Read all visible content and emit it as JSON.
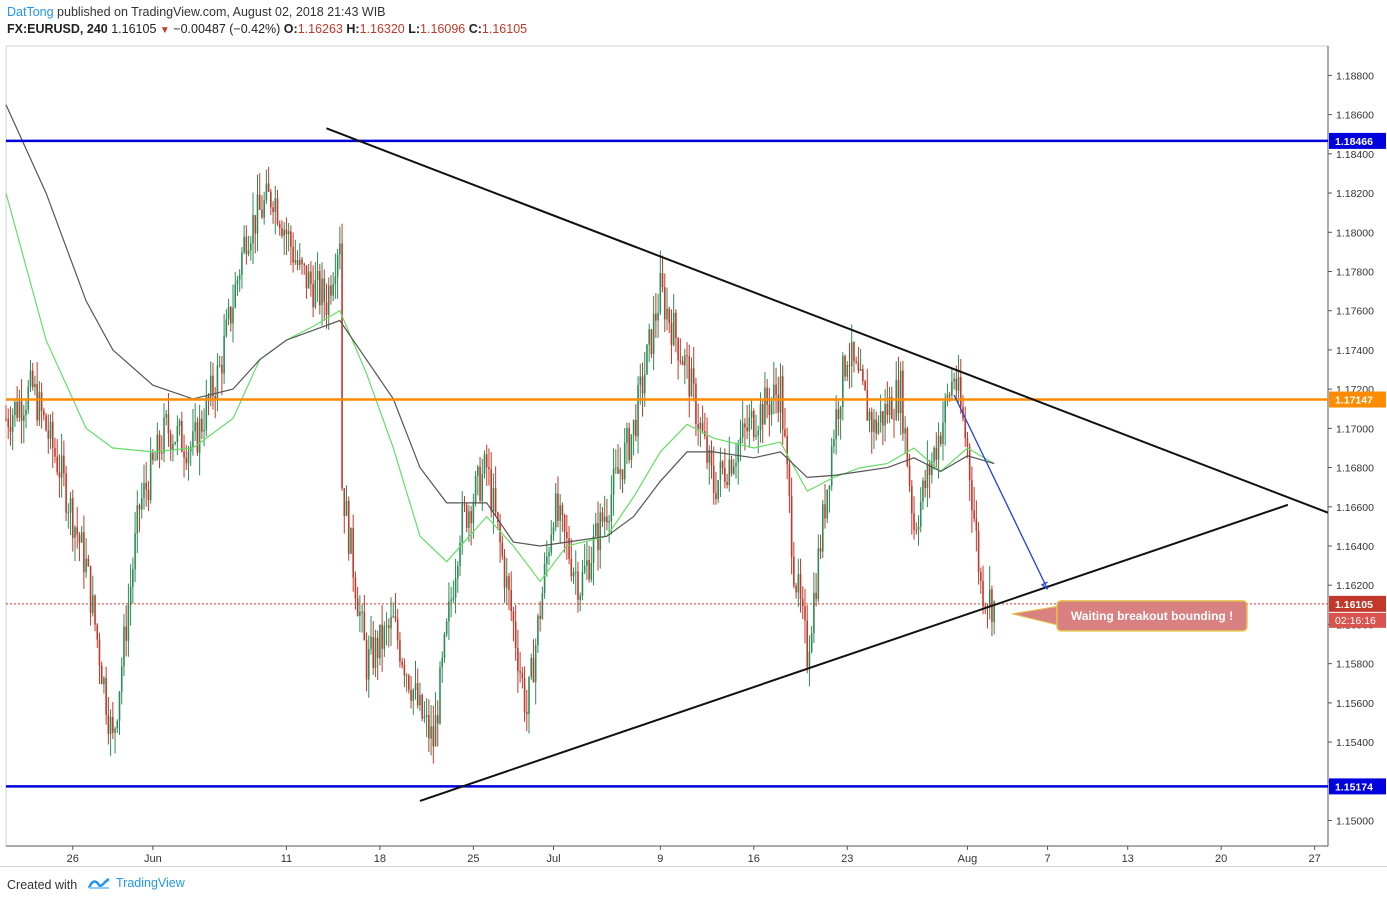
{
  "header": {
    "author": "DatTong",
    "published_text": "published on TradingView.com, August 02, 2018 21:43 WIB",
    "symbol": "FX:EURUSD, 240",
    "last": "1.16105",
    "change": "−0.00487 (−0.42%)",
    "open_label": "O:",
    "open": "1.16263",
    "high_label": "H:",
    "high": "1.16320",
    "low_label": "L:",
    "low": "1.16096",
    "close_label": "C:",
    "close": "1.16105"
  },
  "footer": {
    "created_with": "Created with",
    "brand": "TradingView"
  },
  "colors": {
    "up_candle": "#2e8b57",
    "down_candle": "#c0392b",
    "support_resistance": "#0000dd",
    "mid_level": "#ff8c00",
    "trendline": "#111111",
    "ma_fast": "#66dd66",
    "ma_slow": "#555555",
    "projection_arrow": "#1e3fd8",
    "price_line": "#c0392b",
    "callout_bg": "#d98080",
    "callout_border": "#e8c44a"
  },
  "chart_data": {
    "type": "candlestick",
    "symbol": "FX:EURUSD",
    "interval": "240",
    "y_axis": {
      "range": [
        1.1487,
        1.1895
      ],
      "tick_labels": [
        "1.18800",
        "1.18600",
        "1.18400",
        "1.18200",
        "1.18000",
        "1.17800",
        "1.17600",
        "1.17400",
        "1.17200",
        "1.17000",
        "1.16800",
        "1.16600",
        "1.16400",
        "1.16200",
        "1.16000",
        "1.15800",
        "1.15600",
        "1.15400",
        "1.15200",
        "1.15000"
      ]
    },
    "x_axis": {
      "tick_labels": [
        "26",
        "Jun",
        "11",
        "18",
        "25",
        "Jul",
        "9",
        "16",
        "23",
        "Aug",
        "7",
        "13",
        "20",
        "27"
      ],
      "tick_dates": [
        "2018-05-26",
        "2018-06-01",
        "2018-06-11",
        "2018-06-18",
        "2018-06-25",
        "2018-07-01",
        "2018-07-09",
        "2018-07-16",
        "2018-07-23",
        "2018-08-01",
        "2018-08-07",
        "2018-08-13",
        "2018-08-20",
        "2018-08-27"
      ],
      "range": [
        "2018-05-21",
        "2018-08-28"
      ]
    },
    "horizontal_levels": [
      {
        "price": 1.18466,
        "label": "1.18466",
        "color": "#0000dd"
      },
      {
        "price": 1.17147,
        "label": "1.17147",
        "color": "#ff8c00"
      },
      {
        "price": 1.15174,
        "label": "1.15174",
        "color": "#0000dd"
      }
    ],
    "current_price": {
      "price": 1.16105,
      "label": "1.16105",
      "countdown": "02:16:16"
    },
    "trendlines": [
      {
        "name": "descending-resistance",
        "from": [
          "2018-06-14",
          1.1853
        ],
        "to": [
          "2018-08-28",
          1.1657
        ]
      },
      {
        "name": "ascending-support",
        "from": [
          "2018-06-21",
          1.151
        ],
        "to": [
          "2018-08-25",
          1.1661
        ]
      }
    ],
    "projection_arrow": {
      "from": [
        "2018-07-31",
        1.1717
      ],
      "to": [
        "2018-08-07",
        1.1618
      ]
    },
    "annotation": {
      "text": "Waiting breakout bounding !"
    },
    "series": [
      {
        "name": "fast MA",
        "points": [
          [
            "2018-05-21",
            1.182
          ],
          [
            "2018-05-24",
            1.1745
          ],
          [
            "2018-05-27",
            1.17
          ],
          [
            "2018-05-29",
            1.169
          ],
          [
            "2018-06-01",
            1.1688
          ],
          [
            "2018-06-04",
            1.169
          ],
          [
            "2018-06-07",
            1.1705
          ],
          [
            "2018-06-09",
            1.1735
          ],
          [
            "2018-06-11",
            1.1745
          ],
          [
            "2018-06-13",
            1.1752
          ],
          [
            "2018-06-15",
            1.176
          ],
          [
            "2018-06-17",
            1.1728
          ],
          [
            "2018-06-19",
            1.169
          ],
          [
            "2018-06-21",
            1.1645
          ],
          [
            "2018-06-23",
            1.1632
          ],
          [
            "2018-06-26",
            1.1655
          ],
          [
            "2018-06-28",
            1.164
          ],
          [
            "2018-06-30",
            1.1622
          ],
          [
            "2018-07-02",
            1.164
          ],
          [
            "2018-07-05",
            1.1645
          ],
          [
            "2018-07-07",
            1.1665
          ],
          [
            "2018-07-09",
            1.1688
          ],
          [
            "2018-07-11",
            1.1702
          ],
          [
            "2018-07-13",
            1.1695
          ],
          [
            "2018-07-16",
            1.169
          ],
          [
            "2018-07-18",
            1.1693
          ],
          [
            "2018-07-20",
            1.1668
          ],
          [
            "2018-07-22",
            1.1675
          ],
          [
            "2018-07-24",
            1.168
          ],
          [
            "2018-07-26",
            1.1682
          ],
          [
            "2018-07-28",
            1.169
          ],
          [
            "2018-07-30",
            1.1678
          ],
          [
            "2018-08-01",
            1.169
          ],
          [
            "2018-08-03",
            1.1682
          ]
        ]
      },
      {
        "name": "slow MA",
        "points": [
          [
            "2018-05-21",
            1.1865
          ],
          [
            "2018-05-24",
            1.182
          ],
          [
            "2018-05-27",
            1.1765
          ],
          [
            "2018-05-29",
            1.174
          ],
          [
            "2018-06-01",
            1.1722
          ],
          [
            "2018-06-04",
            1.1715
          ],
          [
            "2018-06-07",
            1.172
          ],
          [
            "2018-06-09",
            1.1735
          ],
          [
            "2018-06-11",
            1.1745
          ],
          [
            "2018-06-13",
            1.175
          ],
          [
            "2018-06-15",
            1.1755
          ],
          [
            "2018-06-17",
            1.1735
          ],
          [
            "2018-06-19",
            1.1715
          ],
          [
            "2018-06-21",
            1.168
          ],
          [
            "2018-06-23",
            1.1662
          ],
          [
            "2018-06-26",
            1.1662
          ],
          [
            "2018-06-28",
            1.1642
          ],
          [
            "2018-06-30",
            1.164
          ],
          [
            "2018-07-02",
            1.1642
          ],
          [
            "2018-07-05",
            1.1645
          ],
          [
            "2018-07-07",
            1.1655
          ],
          [
            "2018-07-09",
            1.1673
          ],
          [
            "2018-07-11",
            1.1688
          ],
          [
            "2018-07-13",
            1.1688
          ],
          [
            "2018-07-16",
            1.1685
          ],
          [
            "2018-07-18",
            1.1688
          ],
          [
            "2018-07-20",
            1.1675
          ],
          [
            "2018-07-22",
            1.1676
          ],
          [
            "2018-07-24",
            1.1678
          ],
          [
            "2018-07-26",
            1.168
          ],
          [
            "2018-07-28",
            1.1685
          ],
          [
            "2018-07-30",
            1.1678
          ],
          [
            "2018-08-01",
            1.1686
          ],
          [
            "2018-08-03",
            1.1682
          ]
        ]
      }
    ],
    "candle_path": [
      [
        "2018-05-21",
        1.1705
      ],
      [
        "2018-05-23",
        1.172
      ],
      [
        "2018-05-25",
        1.168
      ],
      [
        "2018-05-27",
        1.163
      ],
      [
        "2018-05-29",
        1.154
      ],
      [
        "2018-05-31",
        1.166
      ],
      [
        "2018-06-02",
        1.17
      ],
      [
        "2018-06-04",
        1.169
      ],
      [
        "2018-06-06",
        1.173
      ],
      [
        "2018-06-08",
        1.18
      ],
      [
        "2018-06-10",
        1.182
      ],
      [
        "2018-06-12",
        1.178
      ],
      [
        "2018-06-14",
        1.1765
      ],
      [
        "2018-06-15",
        1.18
      ],
      [
        "2018-06-15",
        1.168
      ],
      [
        "2018-06-17",
        1.158
      ],
      [
        "2018-06-19",
        1.16
      ],
      [
        "2018-06-21",
        1.1555
      ],
      [
        "2018-06-22",
        1.154
      ],
      [
        "2018-06-24",
        1.165
      ],
      [
        "2018-06-26",
        1.168
      ],
      [
        "2018-06-28",
        1.16
      ],
      [
        "2018-06-29",
        1.1555
      ],
      [
        "2018-07-01",
        1.166
      ],
      [
        "2018-07-03",
        1.162
      ],
      [
        "2018-07-05",
        1.166
      ],
      [
        "2018-07-07",
        1.17
      ],
      [
        "2018-07-09",
        1.177
      ],
      [
        "2018-07-11",
        1.173
      ],
      [
        "2018-07-13",
        1.167
      ],
      [
        "2018-07-16",
        1.1705
      ],
      [
        "2018-07-18",
        1.172
      ],
      [
        "2018-07-19",
        1.163
      ],
      [
        "2018-07-20",
        1.1585
      ],
      [
        "2018-07-22",
        1.17
      ],
      [
        "2018-07-23",
        1.174
      ],
      [
        "2018-07-25",
        1.17
      ],
      [
        "2018-07-27",
        1.172
      ],
      [
        "2018-07-28",
        1.165
      ],
      [
        "2018-07-30",
        1.17
      ],
      [
        "2018-07-31",
        1.1728
      ],
      [
        "2018-08-01",
        1.169
      ],
      [
        "2018-08-02",
        1.162
      ],
      [
        "2018-08-03",
        1.161
      ]
    ]
  }
}
